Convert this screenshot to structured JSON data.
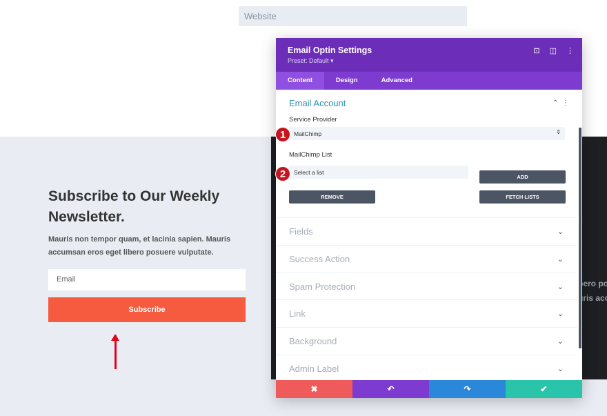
{
  "page": {
    "website_placeholder": "Website",
    "heading": "Subscribe to Our Weekly Newsletter.",
    "description": "Mauris non tempor quam, et lacinia sapien. Mauris accumsan eros eget libero posuere vulputate.",
    "email_placeholder": "Email",
    "subscribe_label": "Subscribe",
    "bg_text_1": "bero po",
    "bg_text_2": "uris acc"
  },
  "panel": {
    "title": "Email Optin Settings",
    "preset": "Preset: Default ▾",
    "tabs": [
      {
        "label": "Content"
      },
      {
        "label": "Design"
      },
      {
        "label": "Advanced"
      }
    ],
    "section_title": "Email Account",
    "service_provider_label": "Service Provider",
    "service_provider_value": "MailChimp",
    "list_label": "MailChimp List",
    "list_value": "Select a list",
    "add_label": "ADD",
    "remove_label": "REMOVE",
    "fetch_label": "FETCH LISTS",
    "badges": [
      "1",
      "2"
    ],
    "sections": [
      {
        "label": "Fields"
      },
      {
        "label": "Success Action"
      },
      {
        "label": "Spam Protection"
      },
      {
        "label": "Link"
      },
      {
        "label": "Background"
      },
      {
        "label": "Admin Label"
      }
    ]
  },
  "colors": {
    "header": "#6c2eb9",
    "tabs": "#7e3bd0",
    "cancel": "#ef5a5a",
    "undo": "#7e3bd0",
    "redo": "#2b87da",
    "save": "#29c4a9",
    "subscribe": "#f65a3f"
  }
}
